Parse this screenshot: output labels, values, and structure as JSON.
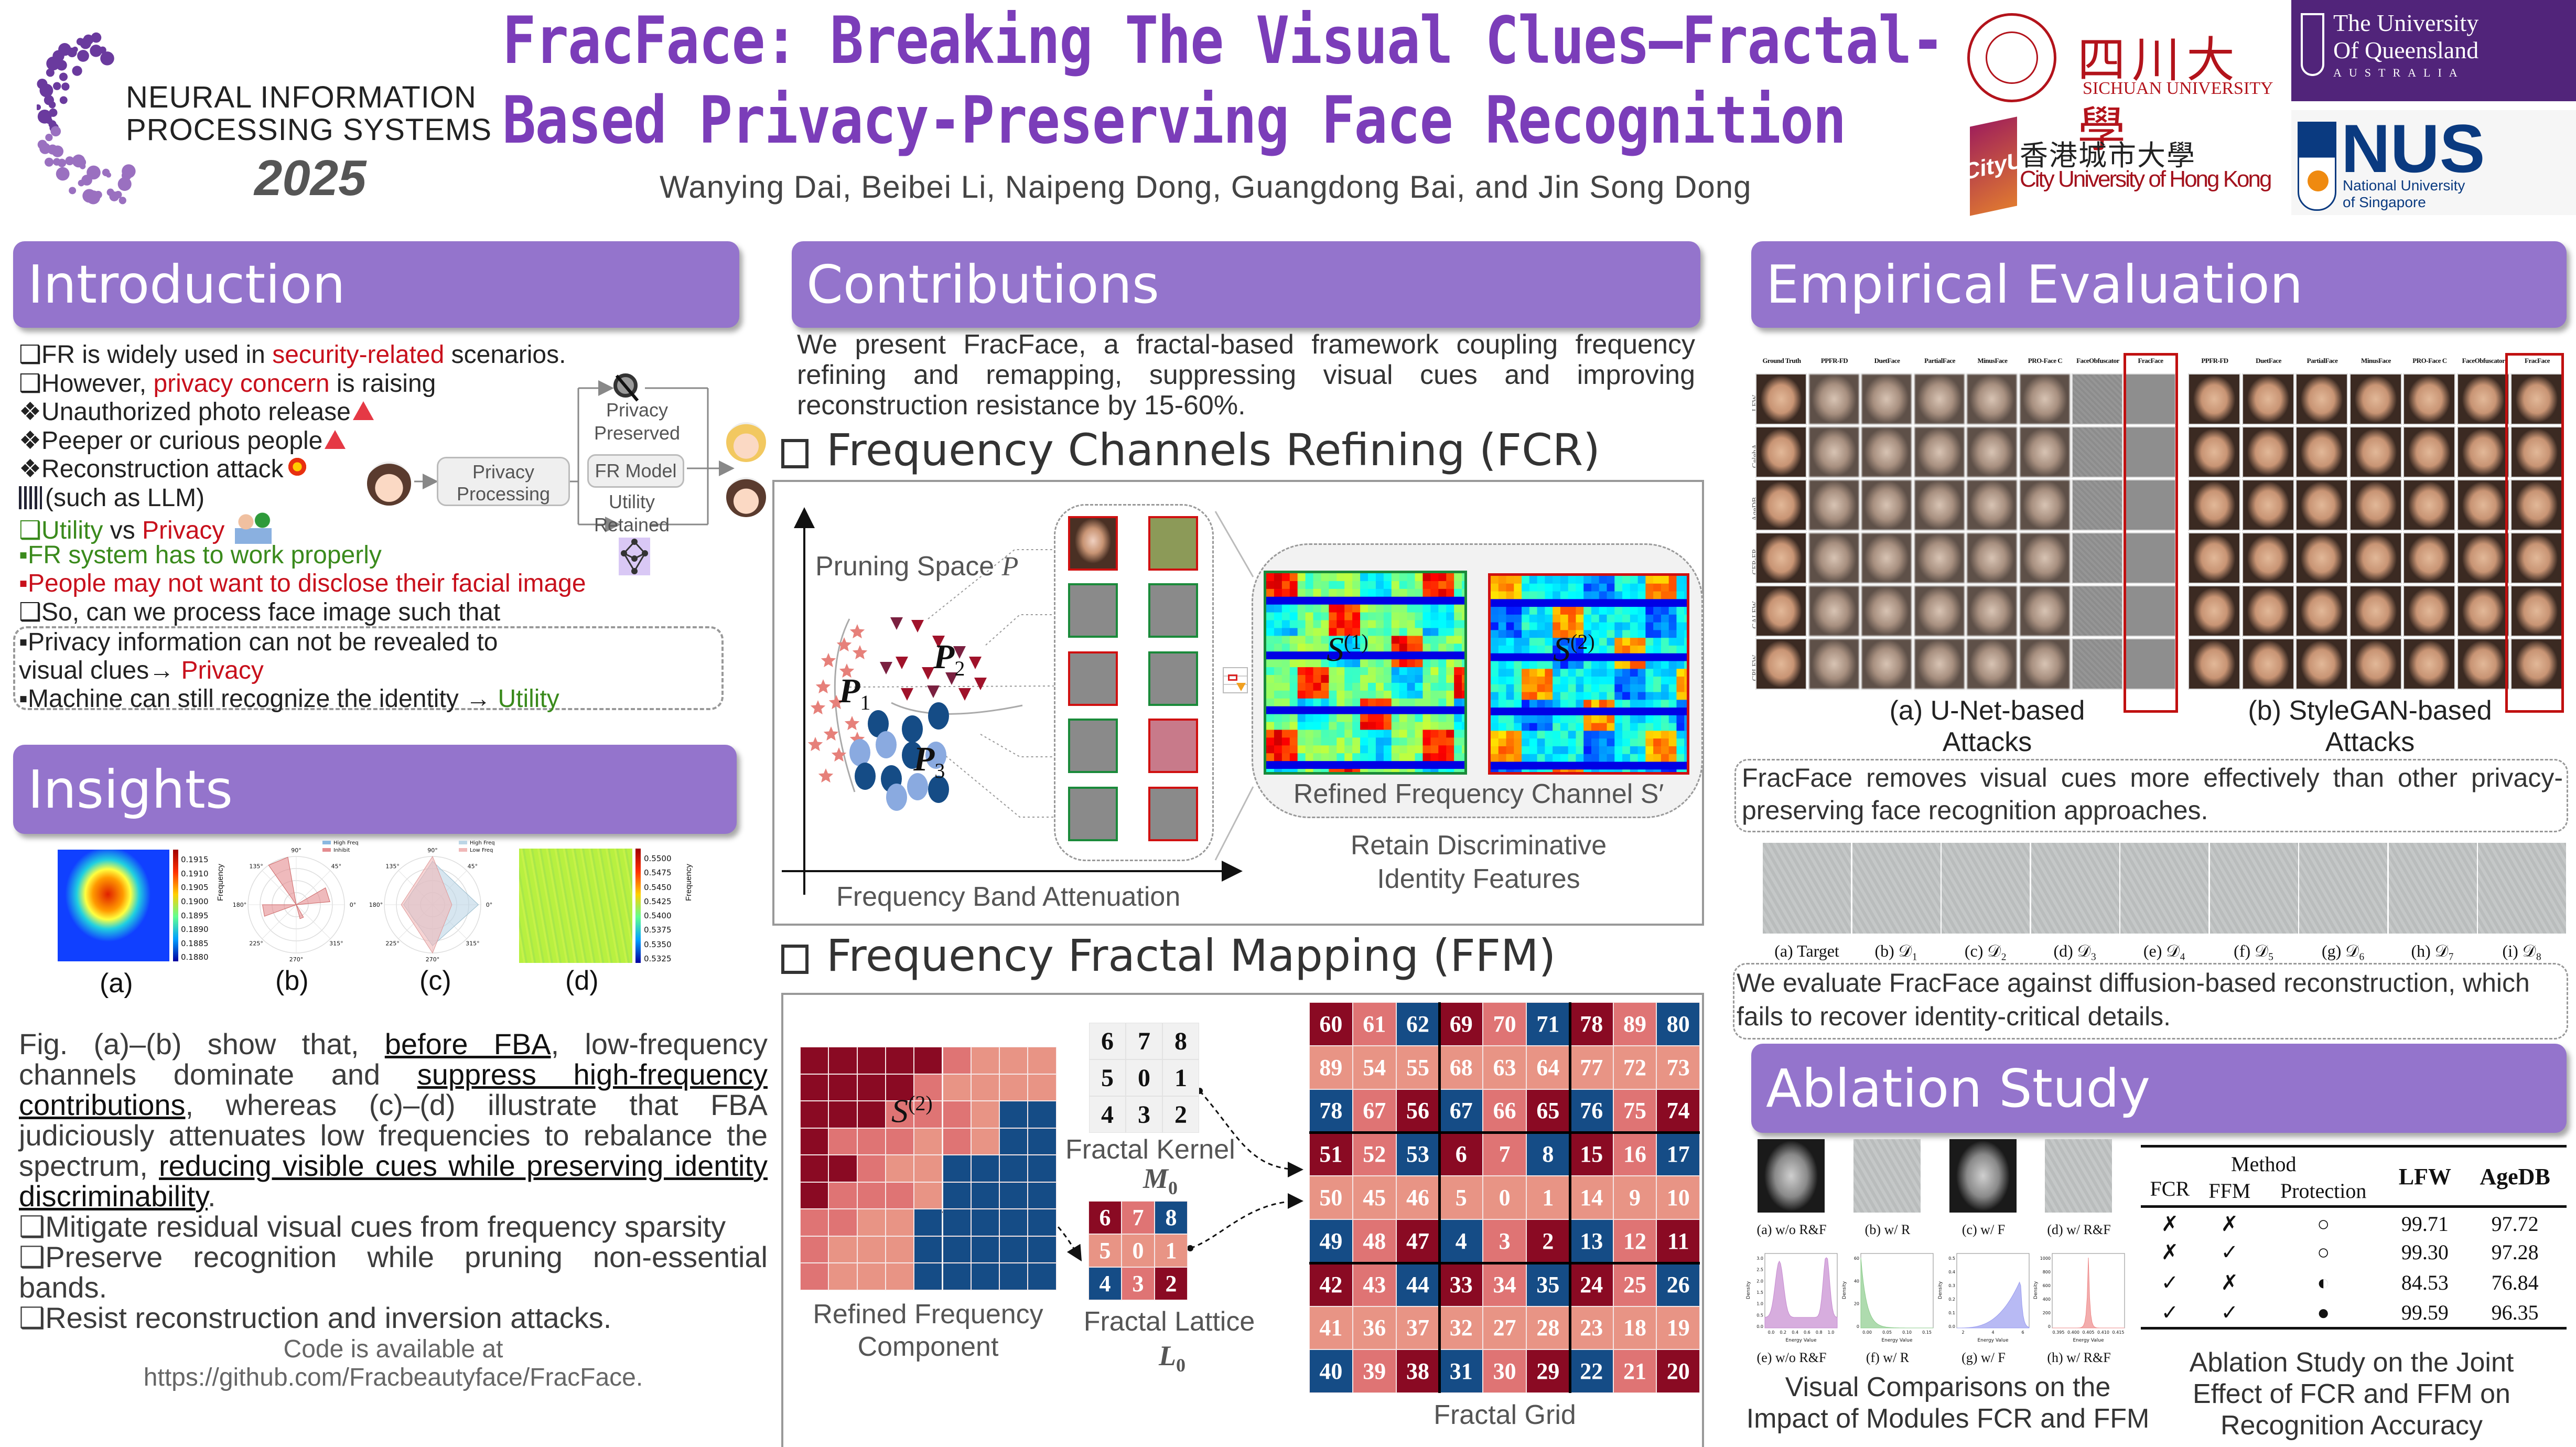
{
  "header": {
    "conference_lines": [
      "NEURAL INFORMATION",
      "PROCESSING SYSTEMS"
    ],
    "conference_year": "2025",
    "title_line1": "FracFace: Breaking The Visual Clues—Fractal-",
    "title_line2": "Based Privacy-Preserving Face Recognition",
    "authors": "Wanying Dai, Beibei Li, Naipeng Dong, Guangdong Bai, and Jin Song Dong",
    "logos": {
      "sichuan_cn": "四川大學",
      "sichuan_en": "SICHUAN UNIVERSITY",
      "uq_lines": [
        "The University",
        "Of Queensland"
      ],
      "uq_country": "AUSTRALIA",
      "cityu_mark": "CityU",
      "cityu_cn": "香港城市大學",
      "cityu_en": "City University of Hong Kong",
      "nus": "NUS",
      "nus_lines": [
        "National University",
        "of Singapore"
      ]
    }
  },
  "colors": {
    "accent": "#9474cc",
    "title": "#7b3db9",
    "red": "#c8101c",
    "green": "#3a8a1c",
    "grid_dark": "#8a0a23",
    "grid_mid": "#df7474",
    "grid_light": "#e89485",
    "grid_blue": "#154c86"
  },
  "intro": {
    "title": "Introduction",
    "lines": [
      {
        "segs": [
          {
            "t": "❑FR is widely used in ",
            "c": "dark"
          },
          {
            "t": "security-related",
            "c": "red"
          },
          {
            "t": " scenarios.",
            "c": "dark"
          }
        ]
      },
      {
        "segs": [
          {
            "t": "❑However, ",
            "c": "dark"
          },
          {
            "t": "privacy concern",
            "c": "red"
          },
          {
            "t": " is raising",
            "c": "dark"
          }
        ]
      },
      {
        "segs": [
          {
            "t": "❖Unauthorized photo release",
            "c": "dark"
          }
        ],
        "icon": "warning-icon"
      },
      {
        "segs": [
          {
            "t": "❖Peeper or curious people",
            "c": "dark"
          }
        ],
        "icon": "warning-icon"
      },
      {
        "segs": [
          {
            "t": "❖Reconstruction attack",
            "c": "dark"
          }
        ],
        "icon": "explosion-icon"
      },
      {
        "segs": [
          {
            "t": "(such as LLM)",
            "c": "dark"
          }
        ],
        "lead_icon": "neural-network-icon"
      },
      {
        "segs": [
          {
            "t": "❑Utility",
            "c": "green"
          },
          {
            "t": " vs ",
            "c": "dark"
          },
          {
            "t": "Privacy",
            "c": "red"
          }
        ],
        "icon": "person-approve-icon"
      },
      {
        "segs": [
          {
            "t": "▪FR system has to work properly",
            "c": "green"
          }
        ]
      },
      {
        "segs": [
          {
            "t": "▪People may not want to disclose their facial image",
            "c": "red"
          }
        ]
      },
      {
        "segs": [
          {
            "t": "❑So, can we process face image such that",
            "c": "dark"
          }
        ]
      }
    ],
    "box_lines": [
      {
        "segs": [
          {
            "t": "▪Privacy information can not be revealed to",
            "c": "dark"
          }
        ]
      },
      {
        "segs": [
          {
            "t": " visual clues→ ",
            "c": "dark"
          },
          {
            "t": "Privacy",
            "c": "red"
          }
        ]
      },
      {
        "segs": [
          {
            "t": "▪Machine can still recognize the identity → ",
            "c": "dark"
          },
          {
            "t": "Utility",
            "c": "green"
          }
        ]
      }
    ],
    "diagram": {
      "processing": [
        "Privacy",
        "Processing"
      ],
      "preserved": [
        "Privacy",
        "Preserved"
      ],
      "model": "FR Model",
      "retained": [
        "Utility",
        "Retained"
      ]
    }
  },
  "insights": {
    "title": "Insights",
    "fig_labels": [
      "(a)",
      "(b)",
      "(c)",
      "(d)"
    ],
    "colorbar_a": [
      "0.1915",
      "0.1910",
      "0.1905",
      "0.1900",
      "0.1895",
      "0.1890",
      "0.1885",
      "0.1880"
    ],
    "colorbar_d": [
      "0.5500",
      "0.5475",
      "0.5450",
      "0.5425",
      "0.5400",
      "0.5375",
      "0.5350",
      "0.5325"
    ],
    "colorbar_label": "Frequency",
    "polar_angles": [
      "90°",
      "45°",
      "0°",
      "315°",
      "270°",
      "225°",
      "180°",
      "135°"
    ],
    "legend_b": [
      "High Freq",
      "Inhibit"
    ],
    "legend_c": [
      "High Freq",
      "Low Freq"
    ],
    "paragraph": [
      {
        "t": "Fig. (a)–(b) show that, ",
        "u": false
      },
      {
        "t": "before FBA",
        "u": true
      },
      {
        "t": ", low-frequency channels dominate and ",
        "u": false
      },
      {
        "t": "suppress high-frequency contributions",
        "u": true
      },
      {
        "t": ", whereas (c)–(d) illustrate that FBA judiciously attenuates low frequencies to rebalance the spectrum, ",
        "u": false
      },
      {
        "t": "reducing visible cues while preserving identity discriminability",
        "u": true
      },
      {
        "t": ".",
        "u": false
      }
    ],
    "bullets": [
      "❑Mitigate residual visual cues from frequency sparsity",
      "❑Preserve recognition while pruning non-essential bands.",
      "❑Resist reconstruction and inversion attacks."
    ],
    "code_lines": [
      "Code is available at",
      "https://github.com/Fracbeautyface/FracFace."
    ]
  },
  "contributions": {
    "title": "Contributions",
    "text": "We present FracFace, a fractal-based framework coupling frequency refining and remapping, suppressing visual cues and improving reconstruction resistance by 15-60%.",
    "fcr": {
      "heading": "Frequency Channels Refining (FCR)",
      "pruning_label": "Pruning Space ",
      "pruning_var": "P",
      "clusters": [
        "P",
        "P",
        "P"
      ],
      "cluster_subs": [
        "1",
        "2",
        "3"
      ],
      "x_axis": "Frequency Band Attenuation",
      "s1": "S",
      "s1_sup": "(1)",
      "s2": "S",
      "s2_sup": "(2)",
      "channel_label": "Refined Frequency Channel S′",
      "retain": [
        "Retain Discriminative",
        "Identity Features"
      ],
      "thumb_borders": [
        [
          "red",
          "red"
        ],
        [
          "green",
          "green"
        ],
        [
          "red",
          "green"
        ],
        [
          "green",
          "red"
        ],
        [
          "green",
          "red"
        ]
      ]
    },
    "ffm": {
      "heading": "Frequency Fractal Mapping (FFM)",
      "component_rows": [
        "DDDDDMLLL",
        "DDDDMLLLL",
        "DDDMMMLBB",
        "DMMMLMLBB",
        "DDMLLBBBB",
        "DMMMLBBBB",
        "MMLLBBBBB",
        "MLLLBBBBB",
        "MLLLBBBBB"
      ],
      "component_label": [
        "Refined Frequency",
        "Component"
      ],
      "s_label": "S",
      "s_sup": "(2)",
      "kernel": [
        [
          6,
          7,
          8
        ],
        [
          5,
          0,
          1
        ],
        [
          4,
          3,
          2
        ]
      ],
      "kernel_label": "Fractal Kernel",
      "kernel_var": "M",
      "kernel_sub": "0",
      "lattice_label": "Fractal Lattice",
      "lattice_var": "L",
      "lattice_sub": "0",
      "grid": [
        [
          60,
          61,
          62,
          69,
          70,
          71,
          78,
          89,
          80
        ],
        [
          89,
          54,
          55,
          68,
          63,
          64,
          77,
          72,
          73
        ],
        [
          78,
          67,
          56,
          67,
          66,
          65,
          76,
          75,
          74
        ],
        [
          51,
          52,
          53,
          6,
          7,
          8,
          15,
          16,
          17
        ],
        [
          50,
          45,
          46,
          5,
          0,
          1,
          14,
          9,
          10
        ],
        [
          49,
          48,
          47,
          4,
          3,
          2,
          13,
          12,
          11
        ],
        [
          42,
          43,
          44,
          33,
          34,
          35,
          24,
          25,
          26
        ],
        [
          41,
          36,
          37,
          32,
          27,
          28,
          23,
          18,
          19
        ],
        [
          40,
          39,
          38,
          31,
          30,
          29,
          22,
          21,
          20
        ]
      ],
      "color_pattern": [
        "DMB",
        "LLL",
        "BMD"
      ],
      "grid_label": "Fractal Grid"
    }
  },
  "empirical": {
    "title": "Empirical Evaluation",
    "left_cols": [
      "Ground Truth",
      "PPFR-FD",
      "DuetFace",
      "PartialFace",
      "MinusFace",
      "PRO-Face C",
      "FaceObfuscator",
      "FracFace"
    ],
    "right_cols": [
      "PPFR-FD",
      "DuetFace",
      "PartialFace",
      "MinusFace",
      "PRO-Face C",
      "FaceObfuscator",
      "FracFace"
    ],
    "rows": [
      "LFW",
      "CelebA",
      "AgeDB",
      "CFP-FP",
      "CALFW",
      "CPLFW"
    ],
    "caption_a": [
      "(a) U-Net-based",
      "Attacks"
    ],
    "caption_b": [
      "(b) StyleGAN-based",
      "Attacks"
    ],
    "note1": "FracFace removes visual cues more effectively than other privacy-preserving face recognition approaches.",
    "diffusion_labels": [
      "(a) Target",
      "(b) 𝒟₁",
      "(c) 𝒟₂",
      "(d) 𝒟₃",
      "(e) 𝒟₄",
      "(f) 𝒟₅",
      "(g) 𝒟₆",
      "(h) 𝒟₇",
      "(i) 𝒟₈"
    ],
    "note2": "We evaluate FracFace against diffusion-based reconstruction, which fails to recover identity-critical details."
  },
  "ablation": {
    "title": "Ablation Study",
    "image_labels": [
      "(a) w/o R&F",
      "(b) w/ R",
      "(c) w/ F",
      "(d) w/ R&F"
    ],
    "hist_labels": [
      "(e) w/o R&F",
      "(f) w/ R",
      "(g) w/ F",
      "(h) w/ R&F"
    ],
    "hist_xlabel": "Energy Value",
    "hist_ylabel": "Density",
    "hist_xticks": [
      [
        "0.0",
        "0.2",
        "0.4",
        "0.6",
        "0.8",
        "1.0"
      ],
      [
        "0.00",
        "0.05",
        "0.10",
        "0.15"
      ],
      [
        "2",
        "4",
        "6"
      ],
      [
        "0.395",
        "0.400",
        "0.405",
        "0.410",
        "0.415"
      ]
    ],
    "hist_yticks": [
      [
        "3.0",
        "2.5",
        "2.0",
        "1.5",
        "1.0",
        "0.5",
        "0.0"
      ],
      [
        "60",
        "40",
        "20",
        "0"
      ],
      [
        "0.5",
        "0.4",
        "0.3",
        "0.2",
        "0.1",
        "0.0"
      ],
      [
        "1000",
        "800",
        "600",
        "400",
        "200",
        "0"
      ]
    ],
    "hist_colors": [
      "#c68ad0",
      "#8ccc8c",
      "#9a9cf0",
      "#ee8a8a"
    ],
    "caption_left": [
      "Visual Comparisons on the",
      "Impact of Modules FCR and FFM"
    ],
    "table": {
      "method": "Method",
      "cols": [
        "FCR",
        "FFM",
        "Protection"
      ],
      "metrics": [
        "LFW",
        "AgeDB"
      ],
      "rows": [
        {
          "fcr": "✗",
          "ffm": "✗",
          "protection": "○",
          "lfw": "99.71",
          "agedb": "97.72"
        },
        {
          "fcr": "✗",
          "ffm": "✓",
          "protection": "○",
          "lfw": "99.30",
          "agedb": "97.28"
        },
        {
          "fcr": "✓",
          "ffm": "✗",
          "protection": "◐",
          "lfw": "84.53",
          "agedb": "76.84"
        },
        {
          "fcr": "✓",
          "ffm": "✓",
          "protection": "●",
          "lfw": "99.59",
          "agedb": "96.35"
        }
      ]
    },
    "caption_right": [
      "Ablation Study on the Joint",
      "Effect of FCR and FFM on",
      "Recognition Accuracy"
    ]
  }
}
